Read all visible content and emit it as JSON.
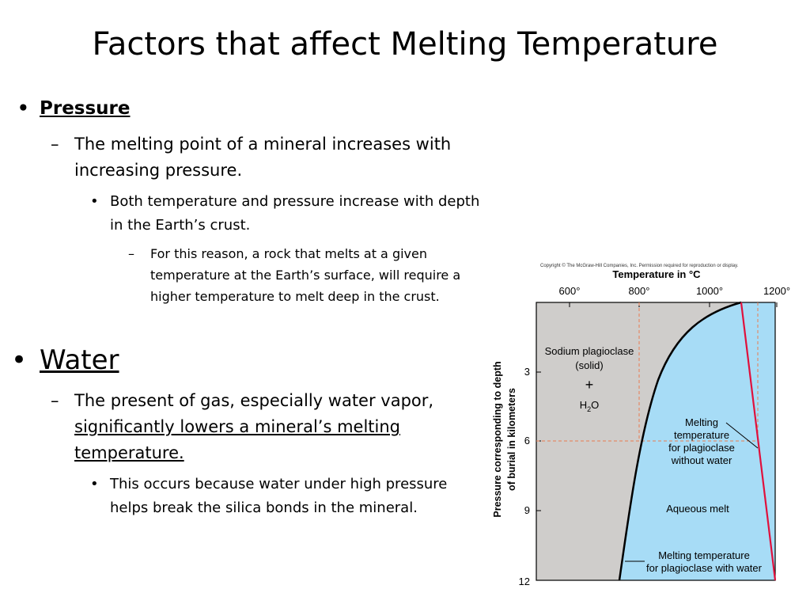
{
  "slide": {
    "title": "Factors that affect Melting Temperature",
    "sections": [
      {
        "heading": "Pressure",
        "points": [
          {
            "text": "The melting point of a mineral increases with increasing pressure.",
            "sub": {
              "text": "Both temperature and pressure increase with depth in the Earth’s crust.",
              "sub": {
                "text": "For this reason, a rock that melts at a given temperature at the Earth’s surface, will require a higher temperature to melt deep in the crust."
              }
            }
          }
        ]
      },
      {
        "heading": "Water",
        "points": [
          {
            "text_plain": "The present of gas, especially water vapor,",
            "text_underlined": "significantly lowers a mineral’s melting temperature.",
            "sub": {
              "text": "This occurs because water under high pressure helps break the silica bonds in the mineral."
            }
          }
        ]
      }
    ]
  },
  "figure": {
    "copyright": "Copyright © The McGraw-Hill Companies, Inc. Permission required for reproduction or display.",
    "x_axis_title": "Temperature in °C",
    "y_axis_title_line1": "Pressure corresponding to depth",
    "y_axis_title_line2": "of burial in kilometers",
    "x_ticks": [
      "600°",
      "800°",
      "1000°",
      "1200°"
    ],
    "y_ticks": [
      "3",
      "6",
      "9",
      "12"
    ],
    "label_solid_1": "Sodium plagioclase",
    "label_solid_2": "(solid)",
    "label_plus": "+",
    "label_h2o_h": "H",
    "label_h2o_2": "2",
    "label_h2o_o": "O",
    "label_dry_1": "Melting",
    "label_dry_2": "temperature",
    "label_dry_3": "for plagioclase",
    "label_dry_4": "without water",
    "label_melt": "Aqueous melt",
    "label_wet_1": "Melting temperature",
    "label_wet_2": "for plagioclase with water",
    "colors": {
      "solid": "#cfcdcb",
      "melt": "#a7dcf6",
      "dry_curve": "#e0103c",
      "wet_curve": "#000000",
      "guide": "#e87b50"
    }
  }
}
